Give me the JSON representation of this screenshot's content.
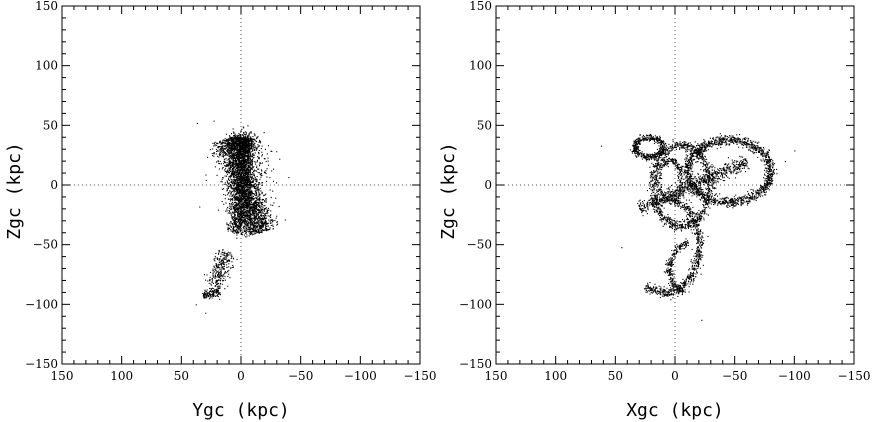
{
  "chart_data": [
    {
      "type": "scatter",
      "xlabel": "Ygc (kpc)",
      "ylabel": "Zgc (kpc)",
      "xlim": [
        150,
        -150
      ],
      "ylim": [
        -150,
        150
      ],
      "x_ticks": [
        150,
        100,
        50,
        0,
        -50,
        -100,
        -150
      ],
      "y_ticks": [
        150,
        100,
        50,
        0,
        -50,
        -100,
        -150
      ],
      "reference_lines": {
        "x": 0,
        "y": 0,
        "style": "dotted"
      },
      "marker_color": "#000000",
      "features": [
        {
          "kind": "band",
          "from": [
            -15,
            -40
          ],
          "to": [
            10,
            40
          ],
          "width": 14,
          "points": 2600
        },
        {
          "kind": "band",
          "from": [
            5,
            -40
          ],
          "to": [
            -5,
            40
          ],
          "width": 8,
          "points": 1200
        },
        {
          "kind": "band",
          "from": [
            12,
            -55
          ],
          "to": [
            22,
            -85
          ],
          "width": 8,
          "points": 260
        },
        {
          "kind": "band",
          "from": [
            18,
            -88
          ],
          "to": [
            32,
            -93
          ],
          "width": 4,
          "points": 140
        },
        {
          "kind": "blob",
          "center": [
            0,
            35
          ],
          "radius": [
            12,
            10
          ],
          "points": 500
        },
        {
          "kind": "blob",
          "center": [
            -18,
            20
          ],
          "radius": [
            12,
            18
          ],
          "points": 40
        }
      ],
      "sample_points": [
        {
          "x": 37,
          "y": 52
        },
        {
          "x": 23,
          "y": 54
        },
        {
          "x": 35,
          "y": -18
        },
        {
          "x": 38,
          "y": -100
        },
        {
          "x": 30,
          "y": -107
        },
        {
          "x": -32,
          "y": 22
        }
      ]
    },
    {
      "type": "scatter",
      "xlabel": "Xgc (kpc)",
      "ylabel": "Zgc (kpc)",
      "xlim": [
        150,
        -150
      ],
      "ylim": [
        -150,
        150
      ],
      "x_ticks": [
        150,
        100,
        50,
        0,
        -50,
        -100,
        -150
      ],
      "y_ticks": [
        150,
        100,
        50,
        0,
        -50,
        -100,
        -150
      ],
      "reference_lines": {
        "x": 0,
        "y": 0,
        "style": "dotted"
      },
      "marker_color": "#000000",
      "features": [
        {
          "kind": "ellipse_loop",
          "center": [
            -45,
            12
          ],
          "radius": [
            35,
            26
          ],
          "width": 4,
          "points": 1400
        },
        {
          "kind": "ellipse_loop",
          "center": [
            -5,
            0
          ],
          "radius": [
            24,
            34
          ],
          "width": 4,
          "points": 900
        },
        {
          "kind": "ellipse_loop",
          "center": [
            22,
            32
          ],
          "radius": [
            12,
            8
          ],
          "width": 3,
          "points": 500
        },
        {
          "kind": "ellipse_loop",
          "center": [
            5,
            5
          ],
          "radius": [
            10,
            16
          ],
          "width": 3,
          "points": 300
        },
        {
          "kind": "arc",
          "center": [
            10,
            -50
          ],
          "radius": [
            30,
            40
          ],
          "from_deg": 100,
          "to_deg": 300,
          "width": 4,
          "points": 700
        },
        {
          "kind": "arc",
          "center": [
            -15,
            -70
          ],
          "radius": [
            20,
            22
          ],
          "from_deg": -70,
          "to_deg": 80,
          "width": 3,
          "points": 260
        },
        {
          "kind": "band",
          "from": [
            30,
            -20
          ],
          "to": [
            -60,
            20
          ],
          "width": 6,
          "points": 700
        }
      ],
      "sample_points": [
        {
          "x": 62,
          "y": 33
        },
        {
          "x": -100,
          "y": 29
        },
        {
          "x": -22,
          "y": -113
        },
        {
          "x": 45,
          "y": -52
        },
        {
          "x": -92,
          "y": 20
        },
        {
          "x": -85,
          "y": 10
        }
      ]
    }
  ]
}
